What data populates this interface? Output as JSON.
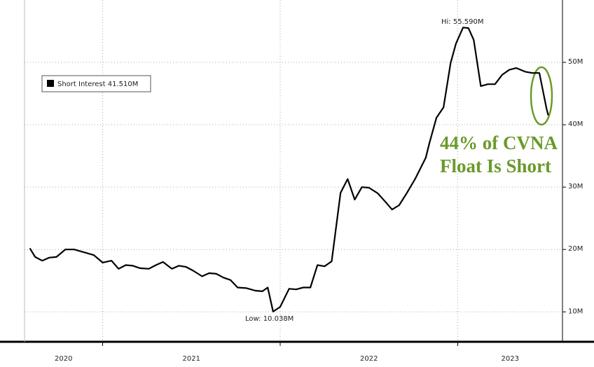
{
  "chart_data": {
    "type": "line",
    "x": [
      2020.59,
      2020.62,
      2020.66,
      2020.7,
      2020.74,
      2020.79,
      2020.84,
      2020.89,
      2020.95,
      2021.0,
      2021.05,
      2021.09,
      2021.13,
      2021.17,
      2021.21,
      2021.26,
      2021.3,
      2021.34,
      2021.39,
      2021.43,
      2021.47,
      2021.51,
      2021.56,
      2021.6,
      2021.64,
      2021.68,
      2021.72,
      2021.76,
      2021.81,
      2021.86,
      2021.9,
      2021.93,
      2021.96,
      2022.0,
      2022.05,
      2022.09,
      2022.13,
      2022.17,
      2022.21,
      2022.25,
      2022.29,
      2022.34,
      2022.38,
      2022.42,
      2022.46,
      2022.5,
      2022.55,
      2022.6,
      2022.63,
      2022.67,
      2022.71,
      2022.76,
      2022.82,
      2022.84,
      2022.88,
      2022.92,
      2022.96,
      2022.99,
      2023.03,
      2023.06,
      2023.09,
      2023.13,
      2023.17,
      2023.21,
      2023.25,
      2023.29,
      2023.33,
      2023.38,
      2023.42,
      2023.46,
      2023.5,
      2023.51
    ],
    "series": [
      {
        "name": "Short Interest 41.510M",
        "color": "#000000",
        "values": [
          20.2,
          18.8,
          18.2,
          18.7,
          18.8,
          20.0,
          20.0,
          19.6,
          19.1,
          17.9,
          18.2,
          16.9,
          17.5,
          17.4,
          17.0,
          16.9,
          17.5,
          18.0,
          16.9,
          17.4,
          17.2,
          16.6,
          15.7,
          16.2,
          16.1,
          15.5,
          15.1,
          13.9,
          13.8,
          13.4,
          13.3,
          13.9,
          10.038,
          10.8,
          13.7,
          13.6,
          13.9,
          13.9,
          17.5,
          17.3,
          18.1,
          29.1,
          31.3,
          28.0,
          30.0,
          29.9,
          29.0,
          27.4,
          26.4,
          27.1,
          28.9,
          31.3,
          34.7,
          37.0,
          41.1,
          42.8,
          49.9,
          53.0,
          55.59,
          55.5,
          53.6,
          46.2,
          46.5,
          46.5,
          48.0,
          48.8,
          49.1,
          48.5,
          48.3,
          48.3,
          42.6,
          41.51
        ]
      }
    ],
    "xlim": [
      2020.56,
      2023.59
    ],
    "xticks": [
      2021,
      2022,
      2023
    ],
    "years": [
      "2020",
      "2021",
      "2022",
      "2023"
    ],
    "ylim": [
      5.2,
      60
    ],
    "yticks": [
      {
        "value": 10,
        "label": "10M"
      },
      {
        "value": 20,
        "label": "20M"
      },
      {
        "value": 30,
        "label": "30M"
      },
      {
        "value": 40,
        "label": "40M"
      },
      {
        "value": 50,
        "label": "50M"
      }
    ],
    "grid": true,
    "annotations": {
      "high": "Hi: 55.590M",
      "low": "Low: 10.038M",
      "note_line1": "44% of CVNA",
      "note_line2": "Float Is Short"
    },
    "annotation_color": "#6a9a2a"
  }
}
